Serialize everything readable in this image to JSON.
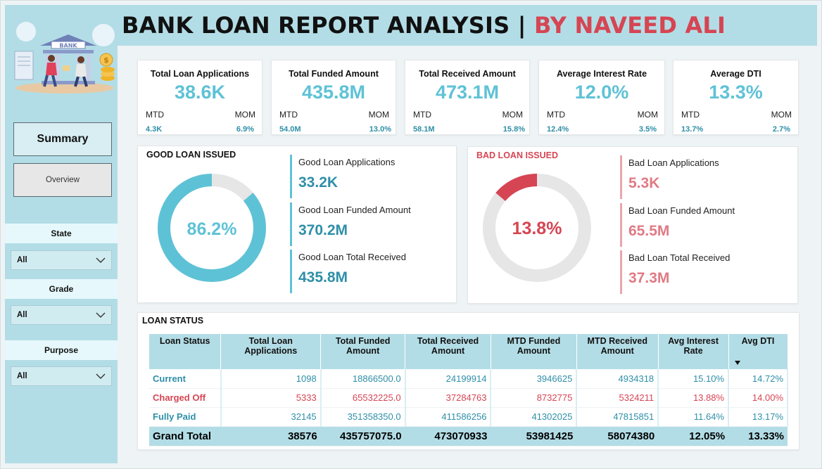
{
  "header": {
    "title_main": "BANK LOAN REPORT ANALYSIS | ",
    "title_by": "BY NAVEED ALI"
  },
  "logo": {
    "sign_text": "BANK"
  },
  "sidebar": {
    "summary_label": "Summary",
    "overview_label": "Overview",
    "filters": [
      {
        "label": "State",
        "value": "All"
      },
      {
        "label": "Grade",
        "value": "All"
      },
      {
        "label": "Purpose",
        "value": "All"
      }
    ]
  },
  "kpis": [
    {
      "title": "Total Loan Applications",
      "value": "38.6K",
      "mtd_label": "MTD",
      "mom_label": "MOM",
      "mtd": "4.3K",
      "mom": "6.9%"
    },
    {
      "title": "Total Funded Amount",
      "value": "435.8M",
      "mtd_label": "MTD",
      "mom_label": "MOM",
      "mtd": "54.0M",
      "mom": "13.0%"
    },
    {
      "title": "Total Received Amount",
      "value": "473.1M",
      "mtd_label": "MTD",
      "mom_label": "MOM",
      "mtd": "58.1M",
      "mom": "15.8%"
    },
    {
      "title": "Average Interest Rate",
      "value": "12.0%",
      "mtd_label": "MTD",
      "mom_label": "MOM",
      "mtd": "12.4%",
      "mom": "3.5%"
    },
    {
      "title": "Average DTI",
      "value": "13.3%",
      "mtd_label": "MTD",
      "mom_label": "MOM",
      "mtd": "13.7%",
      "mom": "2.7%"
    }
  ],
  "good_loan": {
    "title": "GOOD LOAN ISSUED",
    "percent_label": "86.2%",
    "percent": 86.2,
    "metrics": [
      {
        "label": "Good Loan Applications",
        "value": "33.2K"
      },
      {
        "label": "Good Loan Funded Amount",
        "value": "370.2M"
      },
      {
        "label": "Good Loan Total Received",
        "value": "435.8M"
      }
    ]
  },
  "bad_loan": {
    "title": "BAD LOAN ISSUED",
    "percent_label": "13.8%",
    "percent": 13.8,
    "metrics": [
      {
        "label": "Bad Loan Applications",
        "value": "5.3K"
      },
      {
        "label": "Bad Loan Funded Amount",
        "value": "65.5M"
      },
      {
        "label": "Bad Loan Total Received",
        "value": "37.3M"
      }
    ]
  },
  "loan_status": {
    "title": "LOAN STATUS",
    "columns": [
      "Loan Status",
      "Total Loan Applications",
      "Total Funded Amount",
      "Total Received Amount",
      "MTD Funded Amount",
      "MTD Received Amount",
      "Avg Interest Rate",
      "Avg DTI"
    ],
    "rows": [
      [
        "Current",
        "1098",
        "18866500.0",
        "24199914",
        "3946625",
        "4934318",
        "15.10%",
        "14.72%"
      ],
      [
        "Charged Off",
        "5333",
        "65532225.0",
        "37284763",
        "8732775",
        "5324211",
        "13.88%",
        "14.00%"
      ],
      [
        "Fully Paid",
        "32145",
        "351358350.0",
        "411586256",
        "41302025",
        "47815851",
        "11.64%",
        "13.17%"
      ]
    ],
    "total": [
      "Grand Total",
      "38576",
      "435757075.0",
      "473070933",
      "53981425",
      "58074380",
      "12.05%",
      "13.33%"
    ]
  },
  "colors": {
    "accent": "#5ec2d6",
    "accent_dark": "#2e8fa8",
    "bad": "#d64553",
    "panel": "#b3dde6",
    "donut_track": "#e6e6e6"
  }
}
